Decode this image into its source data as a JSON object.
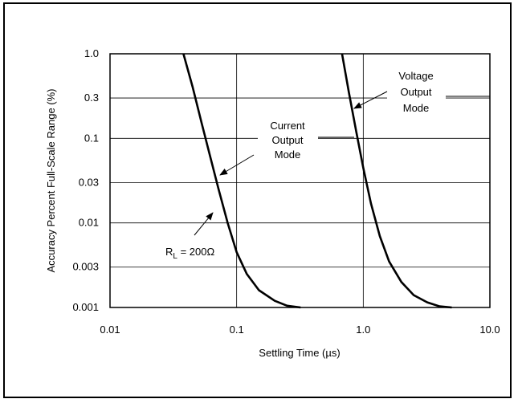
{
  "chart_data": {
    "type": "line",
    "xlabel": "Settling Time (µs)",
    "ylabel": "Accuracy Percent Full-Scale Range (%)",
    "x_scale": "log",
    "y_scale": "log",
    "xlim": [
      0.01,
      10.0
    ],
    "ylim": [
      0.001,
      1.0
    ],
    "x_ticks": [
      0.01,
      0.1,
      1.0,
      10.0
    ],
    "x_tick_labels": [
      "0.01",
      "0.1",
      "1.0",
      "10.0"
    ],
    "y_ticks": [
      1.0,
      0.3,
      0.1,
      0.03,
      0.01,
      0.003,
      0.001
    ],
    "y_tick_labels": [
      "1.0",
      "0.3",
      "0.1",
      "0.03",
      "0.01",
      "0.003",
      "0.001"
    ],
    "grid": true,
    "series": [
      {
        "x": [
          0.038,
          0.045,
          0.053,
          0.062,
          0.072,
          0.085,
          0.1,
          0.12,
          0.15,
          0.2,
          0.25,
          0.32
        ],
        "y": [
          1.0,
          0.4,
          0.15,
          0.06,
          0.025,
          0.01,
          0.0045,
          0.0025,
          0.0016,
          0.0012,
          0.00105,
          0.001
        ]
      },
      {
        "x": [
          0.68,
          0.77,
          0.88,
          1.0,
          1.15,
          1.35,
          1.6,
          2.0,
          2.5,
          3.2,
          4.0,
          5.0
        ],
        "y": [
          1.0,
          0.35,
          0.12,
          0.045,
          0.017,
          0.007,
          0.0035,
          0.002,
          0.0014,
          0.00115,
          0.00103,
          0.001
        ]
      }
    ],
    "annotations": {
      "current_l1": "Current",
      "current_l2": "Output",
      "current_l3": "Mode",
      "voltage_l1": "Voltage",
      "voltage_l2": "Output",
      "voltage_l3": "Mode",
      "rl_prefix": "R",
      "rl_sub": "L",
      "rl_value": " = 200Ω"
    }
  }
}
